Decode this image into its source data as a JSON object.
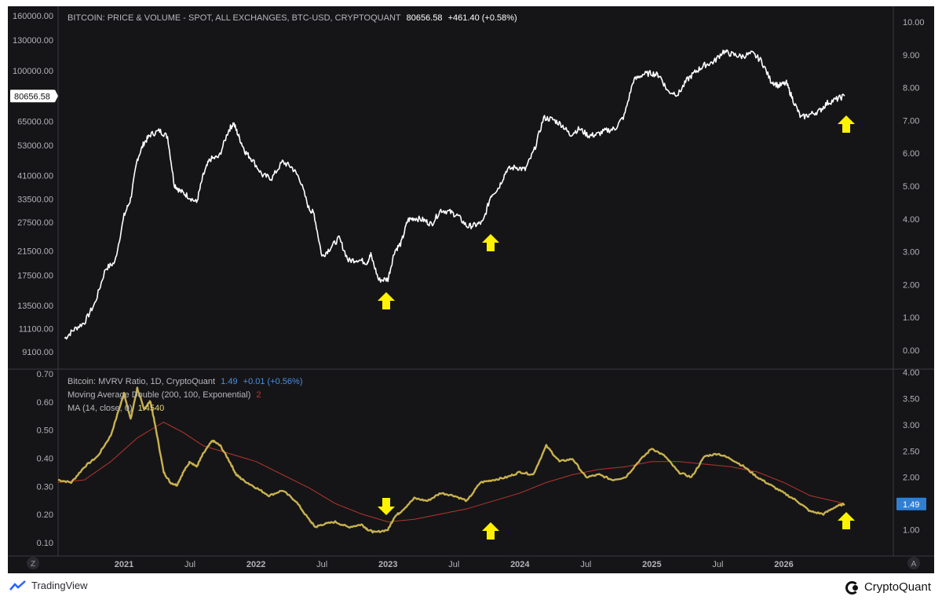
{
  "legend": {
    "price_title": "BITCOIN: PRICE & VOLUME - SPOT, ALL EXCHANGES, BTC-USD, CRYPTOQUANT",
    "price_value": "80656.58",
    "price_change": "+461.40 (+0.58%)",
    "mvrv_title": "Bitcoin: MVRV Ratio, 1D, CryptoQuant",
    "mvrv_value": "1.49",
    "mvrv_change": "+0.01 (+0.56%)",
    "ma_double_title": "Moving Average Double (200, 100, Exponential)",
    "ma_double_value": "2",
    "ma_title": "MA (14, close, 0)",
    "ma_value": "1.4540"
  },
  "badges": {
    "price_last": "80656.58",
    "mvrv_last": "1.49"
  },
  "buttons": {
    "zoom_label": "Z",
    "auto_label": "A"
  },
  "footer": {
    "tradingview_label": "TradingView",
    "cryptoquant_label": "CryptoQuant"
  },
  "colors": {
    "background": "#151518",
    "price_line": "#ffffff",
    "mvrv_line": "#c9b24e",
    "ema_line": "#b8352b",
    "arrow": "#fff200",
    "axis_text": "#b3b3b8",
    "badge_blue": "#2f7fd6"
  },
  "chart_data": [
    {
      "type": "line",
      "title": "BITCOIN: PRICE & VOLUME - SPOT, ALL EXCHANGES, BTC-USD, CRYPTOQUANT",
      "scale": "log",
      "x_ticks": [
        "2021",
        "Jul",
        "2022",
        "Jul",
        "2023",
        "Jul",
        "2024",
        "Jul",
        "2025",
        "Jul",
        "2026"
      ],
      "x_tick_values": [
        2021.0,
        2021.5,
        2022.0,
        2022.5,
        2023.0,
        2023.5,
        2024.0,
        2024.5,
        2025.0,
        2025.5,
        2026.0
      ],
      "xlim": [
        2020.5,
        2026.83
      ],
      "y_ticks_left": [
        "160000.00",
        "130000.00",
        "100000.00",
        "80656.58",
        "65000.00",
        "53000.00",
        "41000.00",
        "33500.00",
        "27500.00",
        "21500.00",
        "17500.00",
        "13500.00",
        "11100.00",
        "9100.00"
      ],
      "y_tick_values_left": [
        160000,
        130000,
        100000,
        80656.58,
        65000,
        53000,
        41000,
        33500,
        27500,
        21500,
        17500,
        13500,
        11100,
        9100
      ],
      "y_ticks_right": [
        "10.00",
        "9.00",
        "8.00",
        "7.00",
        "6.00",
        "5.00",
        "4.00",
        "3.00",
        "2.00",
        "1.00",
        "0.00"
      ],
      "series": [
        {
          "name": "BTC-USD",
          "x": [
            2020.55,
            2020.62,
            2020.7,
            2020.78,
            2020.86,
            2020.93,
            2021.0,
            2021.05,
            2021.1,
            2021.15,
            2021.2,
            2021.27,
            2021.33,
            2021.38,
            2021.42,
            2021.48,
            2021.55,
            2021.6,
            2021.65,
            2021.72,
            2021.79,
            2021.83,
            2021.87,
            2021.92,
            2021.97,
            2022.05,
            2022.12,
            2022.2,
            2022.27,
            2022.33,
            2022.4,
            2022.44,
            2022.5,
            2022.56,
            2022.63,
            2022.7,
            2022.77,
            2022.84,
            2022.87,
            2022.93,
            2023.0,
            2023.05,
            2023.1,
            2023.15,
            2023.2,
            2023.27,
            2023.33,
            2023.4,
            2023.47,
            2023.53,
            2023.6,
            2023.66,
            2023.72,
            2023.78,
            2023.84,
            2023.9,
            2023.97,
            2024.04,
            2024.11,
            2024.18,
            2024.25,
            2024.32,
            2024.38,
            2024.45,
            2024.52,
            2024.58,
            2024.65,
            2024.72,
            2024.79,
            2024.86,
            2024.93,
            2025.0,
            2025.06,
            2025.12,
            2025.2,
            2025.27,
            2025.34,
            2025.4,
            2025.47,
            2025.54,
            2025.61,
            2025.68,
            2025.76,
            2025.83,
            2025.9,
            2025.96,
            2026.02,
            2026.07,
            2026.13,
            2026.2,
            2026.27,
            2026.33,
            2026.4,
            2026.46
          ],
          "y": [
            10200,
            11000,
            11700,
            13800,
            18500,
            19500,
            29000,
            33500,
            47000,
            54000,
            58000,
            60000,
            57000,
            38000,
            36000,
            34500,
            32500,
            41000,
            47000,
            48000,
            60000,
            64000,
            57000,
            50000,
            47000,
            41000,
            40000,
            46000,
            44000,
            40000,
            31000,
            29500,
            20500,
            22000,
            24000,
            19800,
            20000,
            19500,
            20800,
            16800,
            16900,
            21500,
            23000,
            28000,
            28500,
            28000,
            27000,
            30500,
            30000,
            29000,
            26500,
            26800,
            27500,
            34500,
            37000,
            43000,
            44000,
            43000,
            51000,
            67000,
            66000,
            63000,
            58000,
            61000,
            57500,
            58000,
            60000,
            61000,
            68000,
            92000,
            97000,
            98000,
            96000,
            84000,
            82000,
            93000,
            100000,
            105000,
            108000,
            118000,
            115000,
            113000,
            116000,
            109000,
            92000,
            88000,
            90000,
            78000,
            67000,
            69000,
            71000,
            76000,
            78500,
            80656.58
          ]
        }
      ]
    },
    {
      "type": "line",
      "title": "Bitcoin: MVRV Ratio, 1D, CryptoQuant",
      "x_ticks": [
        "2021",
        "Jul",
        "2022",
        "Jul",
        "2023",
        "Jul",
        "2024",
        "Jul",
        "2025",
        "Jul",
        "2026"
      ],
      "xlim": [
        2020.5,
        2026.83
      ],
      "y_ticks_left": [
        "0.70",
        "0.60",
        "0.50",
        "0.40",
        "0.30",
        "0.20",
        "0.10"
      ],
      "y_ticks_right": [
        "4.00",
        "3.50",
        "3.00",
        "2.50",
        "2.00",
        "1.50",
        "1.00"
      ],
      "ylim": [
        0.5,
        4.0
      ],
      "series": [
        {
          "name": "Bitcoin: MVRV Ratio",
          "x": [
            2020.5,
            2020.6,
            2020.7,
            2020.8,
            2020.9,
            2021.0,
            2021.05,
            2021.1,
            2021.15,
            2021.2,
            2021.25,
            2021.3,
            2021.35,
            2021.4,
            2021.45,
            2021.5,
            2021.55,
            2021.6,
            2021.67,
            2021.73,
            2021.8,
            2021.85,
            2021.9,
            2022.0,
            2022.1,
            2022.2,
            2022.3,
            2022.4,
            2022.45,
            2022.5,
            2022.6,
            2022.7,
            2022.8,
            2022.85,
            2022.9,
            2023.0,
            2023.05,
            2023.1,
            2023.2,
            2023.3,
            2023.4,
            2023.5,
            2023.6,
            2023.7,
            2023.8,
            2023.9,
            2024.0,
            2024.1,
            2024.2,
            2024.3,
            2024.4,
            2024.5,
            2024.6,
            2024.7,
            2024.8,
            2024.9,
            2025.0,
            2025.1,
            2025.2,
            2025.3,
            2025.4,
            2025.5,
            2025.6,
            2025.7,
            2025.8,
            2025.9,
            2026.0,
            2026.1,
            2026.2,
            2026.3,
            2026.4,
            2026.46
          ],
          "y": [
            1.95,
            1.9,
            2.2,
            2.4,
            2.8,
            3.6,
            3.1,
            3.7,
            3.3,
            3.45,
            2.8,
            2.1,
            1.9,
            1.85,
            2.1,
            2.3,
            2.2,
            2.45,
            2.7,
            2.6,
            2.3,
            2.05,
            1.95,
            1.8,
            1.65,
            1.75,
            1.55,
            1.2,
            1.05,
            1.1,
            1.15,
            1.05,
            1.1,
            1.0,
            0.95,
            1.0,
            1.25,
            1.35,
            1.6,
            1.55,
            1.7,
            1.65,
            1.55,
            1.9,
            1.95,
            2.0,
            2.1,
            2.05,
            2.6,
            2.3,
            2.35,
            2.0,
            2.05,
            1.95,
            2.0,
            2.3,
            2.55,
            2.4,
            2.1,
            2.0,
            2.4,
            2.45,
            2.35,
            2.2,
            2.0,
            1.85,
            1.7,
            1.55,
            1.35,
            1.3,
            1.45,
            1.49
          ]
        },
        {
          "name": "Moving Average Double (200, 100, Exponential)",
          "x": [
            2020.5,
            2020.7,
            2020.9,
            2021.1,
            2021.3,
            2021.45,
            2021.6,
            2021.8,
            2022.0,
            2022.2,
            2022.4,
            2022.6,
            2022.8,
            2023.0,
            2023.2,
            2023.4,
            2023.6,
            2023.8,
            2024.0,
            2024.2,
            2024.4,
            2024.6,
            2024.8,
            2025.0,
            2025.2,
            2025.4,
            2025.6,
            2025.8,
            2026.0,
            2026.2,
            2026.46
          ],
          "y": [
            1.9,
            1.95,
            2.3,
            2.75,
            3.05,
            2.85,
            2.6,
            2.45,
            2.3,
            2.05,
            1.8,
            1.5,
            1.3,
            1.15,
            1.2,
            1.3,
            1.4,
            1.55,
            1.7,
            1.9,
            2.05,
            2.15,
            2.2,
            2.3,
            2.3,
            2.25,
            2.2,
            2.1,
            1.9,
            1.65,
            1.5
          ]
        }
      ]
    }
  ]
}
